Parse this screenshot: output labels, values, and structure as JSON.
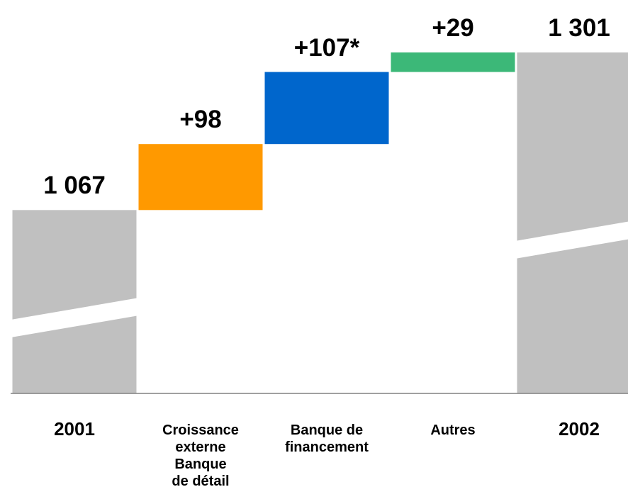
{
  "chart_data": {
    "type": "waterfall",
    "categories": [
      "2001",
      "Croissance\nexterne\nBanque\nde détail",
      "Banque de\nfinancement",
      "Autres",
      "2002"
    ],
    "values": [
      1067,
      98,
      107,
      29,
      1301
    ],
    "value_labels": [
      "1 067",
      "+98",
      "+107*",
      "+29",
      "1 301"
    ],
    "totals": [
      true,
      false,
      false,
      false,
      true
    ],
    "colors": [
      "#c0c0c0",
      "#ff9900",
      "#0066cc",
      "#3cb878",
      "#c0c0c0"
    ],
    "axis_break": true
  }
}
